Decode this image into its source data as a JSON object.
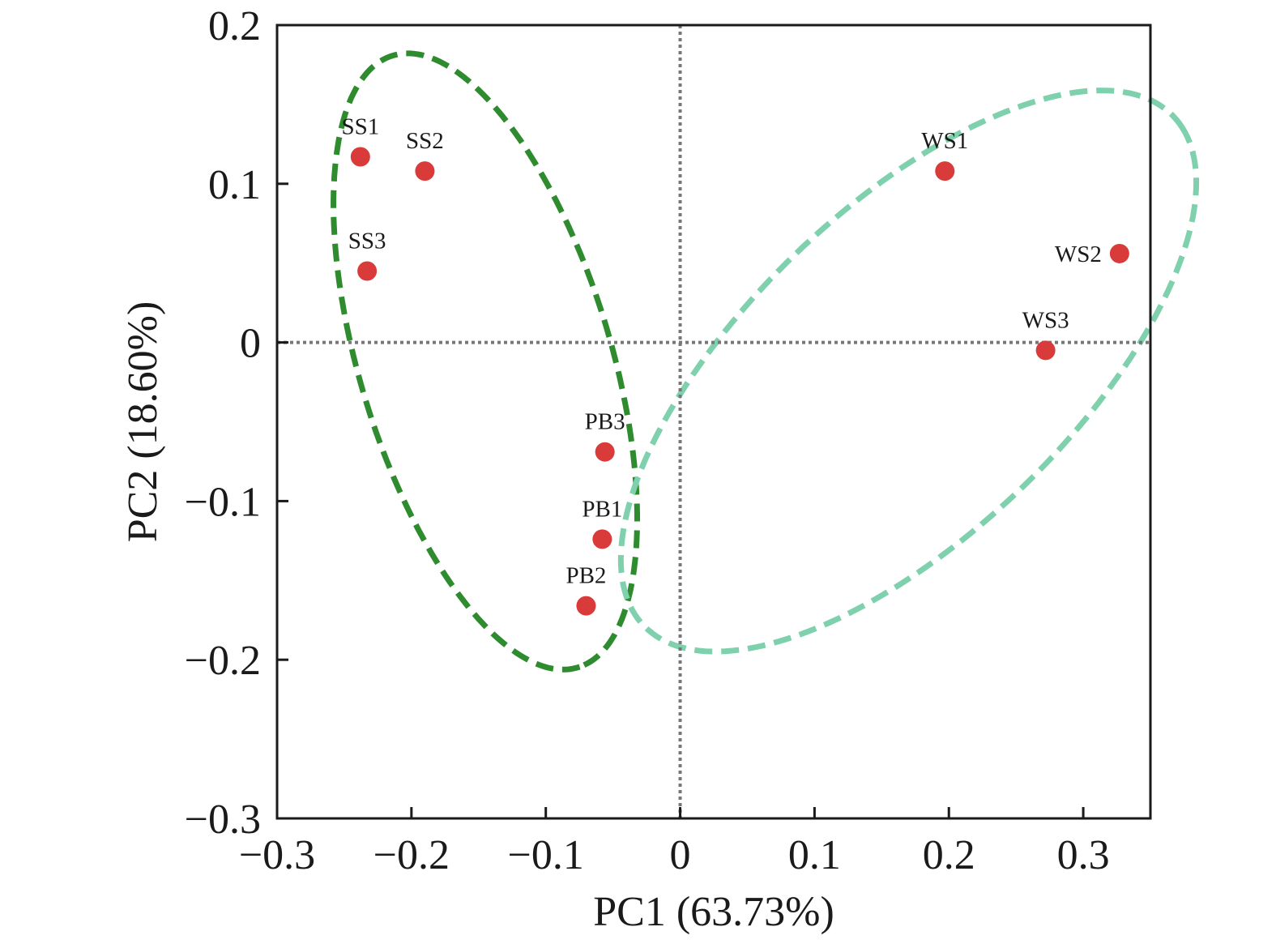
{
  "chart_data": {
    "type": "scatter",
    "title": "",
    "xlabel": "PC1 (63.73%)",
    "ylabel": "PC2 (18.60%)",
    "xlim": [
      -0.3,
      0.35
    ],
    "ylim": [
      -0.3,
      0.2
    ],
    "xticks": [
      -0.3,
      -0.2,
      -0.1,
      0,
      0.1,
      0.2,
      0.3
    ],
    "xtick_labels": [
      "−0.3",
      "−0.2",
      "−0.1",
      "0",
      "0.1",
      "0.2",
      "0.3"
    ],
    "yticks": [
      -0.3,
      -0.2,
      -0.1,
      0,
      0.1,
      0.2
    ],
    "ytick_labels": [
      "−0.3",
      "−0.2",
      "−0.1",
      "0",
      "0.1",
      "0.2"
    ],
    "reference_lines": {
      "x": 0,
      "y": 0,
      "style": "dotted",
      "color": "#777777"
    },
    "grid": false,
    "point_color": "#d93a3a",
    "points": [
      {
        "label": "SS1",
        "x": -0.238,
        "y": 0.117
      },
      {
        "label": "SS2",
        "x": -0.19,
        "y": 0.108
      },
      {
        "label": "SS3",
        "x": -0.233,
        "y": 0.045
      },
      {
        "label": "WS1",
        "x": 0.197,
        "y": 0.108
      },
      {
        "label": "WS2",
        "x": 0.327,
        "y": 0.056
      },
      {
        "label": "WS3",
        "x": 0.272,
        "y": -0.005
      },
      {
        "label": "PB3",
        "x": -0.056,
        "y": -0.069
      },
      {
        "label": "PB1",
        "x": -0.058,
        "y": -0.124
      },
      {
        "label": "PB2",
        "x": -0.07,
        "y": -0.166
      }
    ],
    "ellipses": [
      {
        "color": "#2e8b2e",
        "cx": -0.145,
        "cy": -0.012,
        "rx": 0.205,
        "ry": 0.092,
        "angle_deg": -69
      },
      {
        "color": "#7fd1ae",
        "cx": 0.17,
        "cy": -0.018,
        "rx": 0.255,
        "ry": 0.11,
        "angle_deg": 37
      }
    ]
  }
}
